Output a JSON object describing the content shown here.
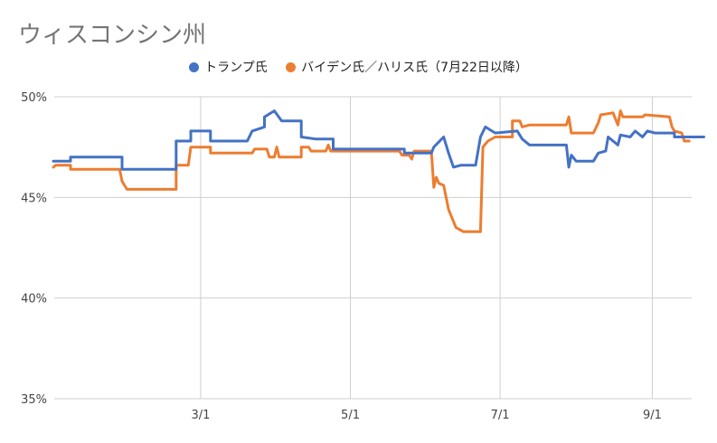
{
  "chart_data": {
    "type": "line",
    "title": "ウィスコンシン州",
    "xlabel": "",
    "ylabel": "",
    "x_ticks": [
      "3/1",
      "5/1",
      "7/1",
      "9/1"
    ],
    "y_ticks": [
      "35%",
      "40%",
      "45%",
      "50%"
    ],
    "ylim": [
      35,
      50
    ],
    "grid": true,
    "legend": "top-center",
    "x_unit": "date (2024)",
    "series": [
      {
        "name": "トランプ氏",
        "color": "#4472C4",
        "points": [
          [
            "01-01",
            46.8
          ],
          [
            "01-08",
            46.8
          ],
          [
            "01-08",
            47.0
          ],
          [
            "01-29",
            47.0
          ],
          [
            "01-29",
            46.4
          ],
          [
            "02-20",
            46.4
          ],
          [
            "02-20",
            47.8
          ],
          [
            "02-26",
            47.8
          ],
          [
            "02-26",
            48.3
          ],
          [
            "03-05",
            48.3
          ],
          [
            "03-05",
            47.8
          ],
          [
            "03-20",
            47.8
          ],
          [
            "03-22",
            48.3
          ],
          [
            "03-27",
            48.5
          ],
          [
            "03-27",
            49.0
          ],
          [
            "03-31",
            49.3
          ],
          [
            "04-03",
            48.8
          ],
          [
            "04-11",
            48.8
          ],
          [
            "04-11",
            48.0
          ],
          [
            "04-17",
            47.9
          ],
          [
            "04-24",
            47.9
          ],
          [
            "04-24",
            47.4
          ],
          [
            "05-23",
            47.4
          ],
          [
            "05-23",
            47.2
          ],
          [
            "06-03",
            47.2
          ],
          [
            "06-04",
            47.5
          ],
          [
            "06-08",
            48.0
          ],
          [
            "06-10",
            47.2
          ],
          [
            "06-12",
            46.5
          ],
          [
            "06-15",
            46.6
          ],
          [
            "06-21",
            46.6
          ],
          [
            "06-23",
            48.0
          ],
          [
            "06-25",
            48.5
          ],
          [
            "06-29",
            48.2
          ],
          [
            "07-08",
            48.3
          ],
          [
            "07-10",
            47.9
          ],
          [
            "07-13",
            47.6
          ],
          [
            "07-28",
            47.6
          ],
          [
            "07-29",
            46.5
          ],
          [
            "07-30",
            47.1
          ],
          [
            "08-01",
            46.8
          ],
          [
            "08-08",
            46.8
          ],
          [
            "08-10",
            47.2
          ],
          [
            "08-13",
            47.3
          ],
          [
            "08-14",
            48.0
          ],
          [
            "08-18",
            47.6
          ],
          [
            "08-19",
            48.1
          ],
          [
            "08-23",
            48.0
          ],
          [
            "08-25",
            48.3
          ],
          [
            "08-28",
            48.0
          ],
          [
            "08-30",
            48.3
          ],
          [
            "09-02",
            48.2
          ],
          [
            "09-10",
            48.2
          ],
          [
            "09-10",
            48.0
          ],
          [
            "09-22",
            48.0
          ]
        ]
      },
      {
        "name": "バイデン氏／ハリス氏（7月22日以降）",
        "color": "#ED7D31",
        "points": [
          [
            "01-01",
            46.5
          ],
          [
            "01-02",
            46.6
          ],
          [
            "01-08",
            46.6
          ],
          [
            "01-08",
            46.4
          ],
          [
            "01-28",
            46.4
          ],
          [
            "01-29",
            45.8
          ],
          [
            "01-31",
            45.4
          ],
          [
            "02-20",
            45.4
          ],
          [
            "02-20",
            46.6
          ],
          [
            "02-25",
            46.6
          ],
          [
            "02-26",
            47.5
          ],
          [
            "03-05",
            47.5
          ],
          [
            "03-05",
            47.2
          ],
          [
            "03-22",
            47.2
          ],
          [
            "03-23",
            47.4
          ],
          [
            "03-28",
            47.4
          ],
          [
            "03-29",
            47.0
          ],
          [
            "03-31",
            47.0
          ],
          [
            "04-01",
            47.5
          ],
          [
            "04-02",
            47.0
          ],
          [
            "04-11",
            47.0
          ],
          [
            "04-11",
            47.5
          ],
          [
            "04-14",
            47.5
          ],
          [
            "04-15",
            47.3
          ],
          [
            "04-21",
            47.3
          ],
          [
            "04-22",
            47.6
          ],
          [
            "04-23",
            47.3
          ],
          [
            "05-21",
            47.3
          ],
          [
            "05-22",
            47.1
          ],
          [
            "05-25",
            47.1
          ],
          [
            "05-26",
            46.9
          ],
          [
            "05-27",
            47.3
          ],
          [
            "06-03",
            47.3
          ],
          [
            "06-04",
            45.5
          ],
          [
            "06-05",
            46.0
          ],
          [
            "06-06",
            45.7
          ],
          [
            "06-08",
            45.6
          ],
          [
            "06-10",
            44.4
          ],
          [
            "06-13",
            43.5
          ],
          [
            "06-16",
            43.3
          ],
          [
            "06-23",
            43.3
          ],
          [
            "06-24",
            47.5
          ],
          [
            "06-26",
            47.8
          ],
          [
            "06-29",
            48.0
          ],
          [
            "07-06",
            48.0
          ],
          [
            "07-06",
            48.8
          ],
          [
            "07-09",
            48.8
          ],
          [
            "07-10",
            48.5
          ],
          [
            "07-13",
            48.6
          ],
          [
            "07-28",
            48.6
          ],
          [
            "07-29",
            49.0
          ],
          [
            "07-30",
            48.2
          ],
          [
            "08-08",
            48.2
          ],
          [
            "08-10",
            48.7
          ],
          [
            "08-11",
            49.1
          ],
          [
            "08-16",
            49.2
          ],
          [
            "08-18",
            48.6
          ],
          [
            "08-19",
            49.3
          ],
          [
            "08-20",
            49.0
          ],
          [
            "08-28",
            49.0
          ],
          [
            "08-29",
            49.1
          ],
          [
            "09-08",
            49.0
          ],
          [
            "09-09",
            48.5
          ],
          [
            "09-10",
            48.3
          ],
          [
            "09-13",
            48.2
          ],
          [
            "09-14",
            47.8
          ],
          [
            "09-16",
            47.8
          ]
        ]
      }
    ]
  }
}
